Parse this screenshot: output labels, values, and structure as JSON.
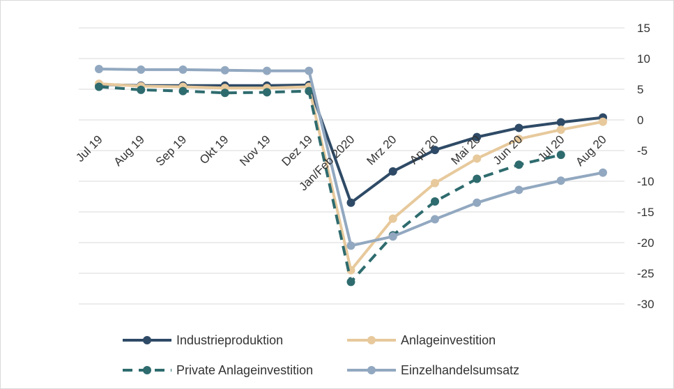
{
  "chart_data": {
    "type": "line",
    "title": "",
    "xlabel": "",
    "ylabel": "",
    "categories": [
      "Jul 19",
      "Aug 19",
      "Sep 19",
      "Okt 19",
      "Nov 19",
      "Dez 19",
      "Jan/Feb 2020",
      "Mrz 20",
      "Apr 20",
      "Mai 20",
      "Jun 20",
      "Jul 20",
      "Aug 20"
    ],
    "ylim": [
      -30,
      15
    ],
    "yticks": [
      15,
      10,
      5,
      0,
      -5,
      -10,
      -15,
      -20,
      -25,
      -30
    ],
    "y_axis_position": "right",
    "grid": true,
    "legend_position": "bottom",
    "series": [
      {
        "name": "Industrieproduktion",
        "color": "#2e4a66",
        "dashed": false,
        "values": [
          5.8,
          5.6,
          5.6,
          5.6,
          5.6,
          5.7,
          -13.5,
          -8.4,
          -4.9,
          -2.8,
          -1.3,
          -0.4,
          0.4
        ]
      },
      {
        "name": "Anlageinvestition",
        "color": "#e7c99c",
        "dashed": false,
        "values": [
          5.9,
          5.5,
          5.4,
          5.2,
          5.2,
          5.4,
          -24.5,
          -16.1,
          -10.3,
          -6.3,
          -3.1,
          -1.6,
          -0.3
        ]
      },
      {
        "name": "Private Anlageinvestition",
        "color": "#2e6b6e",
        "dashed": true,
        "values": [
          5.4,
          4.9,
          4.7,
          4.4,
          4.5,
          4.7,
          -26.4,
          -18.8,
          -13.3,
          -9.6,
          -7.3,
          -5.7,
          null
        ]
      },
      {
        "name": "Einzelhandelsumsatz",
        "color": "#92a8c0",
        "dashed": false,
        "values": [
          8.3,
          8.2,
          8.2,
          8.1,
          8.0,
          8.0,
          -20.5,
          -19.0,
          -16.2,
          -13.5,
          -11.4,
          -9.9,
          -8.6
        ]
      }
    ]
  }
}
